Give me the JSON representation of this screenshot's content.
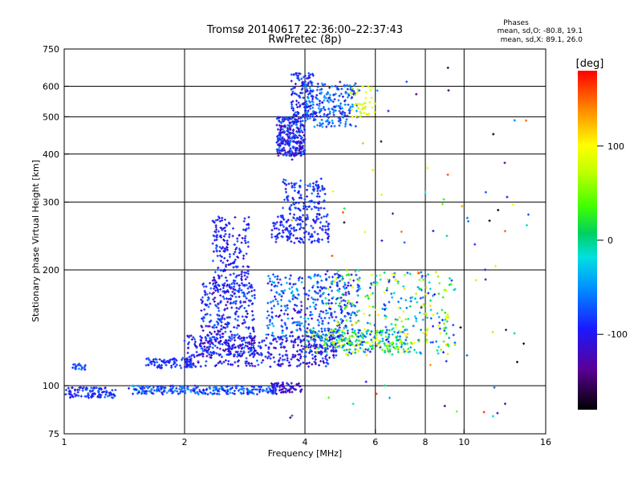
{
  "chart_data": {
    "type": "scatter",
    "title": "Tromsø 20140617 22:36:00–22:37:43",
    "subtitle": "RwPretec (8p)",
    "xlabel": "Frequency [MHz]",
    "ylabel": "Stationary phase Virtual Height [km]",
    "x_scale": "log",
    "y_scale": "log",
    "xlim": [
      1,
      16
    ],
    "ylim": [
      75,
      750
    ],
    "x_ticks": [
      1,
      2,
      4,
      6,
      8,
      10,
      16
    ],
    "x_tick_labels": [
      "1",
      "2",
      "4",
      "6",
      "8",
      "10",
      "16"
    ],
    "y_ticks": [
      75,
      100,
      200,
      300,
      400,
      500,
      600,
      750
    ],
    "y_tick_labels": [
      "75",
      "100",
      "200",
      "300",
      "400",
      "500",
      "600",
      "750"
    ],
    "x_grid": [
      2,
      4,
      6,
      8,
      10
    ],
    "y_grid": [
      100,
      200,
      300,
      400,
      500,
      600
    ],
    "grid": true,
    "phases_box": {
      "title": "Phases",
      "line_o": "mean, sd,O: -80.8, 19.1",
      "line_x": "mean, sd,X:  89.1, 26.0"
    },
    "colorbar": {
      "label": "[deg]",
      "range": [
        -180,
        180
      ],
      "ticks": [
        100,
        0,
        -100
      ],
      "tick_labels": [
        "100",
        "0",
        "-100"
      ]
    },
    "clusters": [
      {
        "fmin": 1.0,
        "fmax": 1.35,
        "hmin": 93,
        "hmax": 99,
        "n": 110,
        "pmin": -110,
        "pmax": -60
      },
      {
        "fmin": 1.45,
        "fmax": 3.4,
        "hmin": 95,
        "hmax": 100,
        "n": 240,
        "pmin": -110,
        "pmax": -40
      },
      {
        "fmin": 3.3,
        "fmax": 3.95,
        "hmin": 96,
        "hmax": 102,
        "n": 60,
        "pmin": -140,
        "pmax": -90
      },
      {
        "fmin": 1.05,
        "fmax": 1.15,
        "hmin": 110,
        "hmax": 114,
        "n": 20,
        "pmin": -90,
        "pmax": -60
      },
      {
        "fmin": 1.6,
        "fmax": 2.1,
        "hmin": 111,
        "hmax": 118,
        "n": 90,
        "pmin": -110,
        "pmax": -70
      },
      {
        "fmin": 2.0,
        "fmax": 4.8,
        "hmin": 112,
        "hmax": 135,
        "n": 420,
        "pmin": -130,
        "pmax": -70
      },
      {
        "fmin": 4.0,
        "fmax": 7.2,
        "hmin": 122,
        "hmax": 140,
        "n": 240,
        "pmin": -100,
        "pmax": 110
      },
      {
        "fmin": 2.2,
        "fmax": 3.0,
        "hmin": 120,
        "hmax": 185,
        "n": 330,
        "pmin": -130,
        "pmax": -60
      },
      {
        "fmin": 3.2,
        "fmax": 5.5,
        "hmin": 130,
        "hmax": 195,
        "n": 380,
        "pmin": -120,
        "pmax": -30
      },
      {
        "fmin": 4.5,
        "fmax": 9.5,
        "hmin": 120,
        "hmax": 200,
        "n": 320,
        "pmin": -100,
        "pmax": 120
      },
      {
        "fmin": 2.35,
        "fmax": 2.9,
        "hmin": 175,
        "hmax": 275,
        "n": 200,
        "pmin": -120,
        "pmax": -70
      },
      {
        "fmin": 3.3,
        "fmax": 4.6,
        "hmin": 235,
        "hmax": 280,
        "n": 160,
        "pmin": -110,
        "pmax": -70
      },
      {
        "fmin": 3.5,
        "fmax": 4.5,
        "hmin": 285,
        "hmax": 345,
        "n": 110,
        "pmin": -110,
        "pmax": -60
      },
      {
        "fmin": 3.4,
        "fmax": 4.0,
        "hmin": 395,
        "hmax": 500,
        "n": 280,
        "pmin": -130,
        "pmax": -60
      },
      {
        "fmin": 3.7,
        "fmax": 4.2,
        "hmin": 500,
        "hmax": 650,
        "n": 120,
        "pmin": -120,
        "pmax": -60
      },
      {
        "fmin": 4.0,
        "fmax": 5.4,
        "hmin": 470,
        "hmax": 610,
        "n": 220,
        "pmin": -110,
        "pmax": -40
      },
      {
        "fmin": 5.2,
        "fmax": 6.0,
        "hmin": 500,
        "hmax": 600,
        "n": 40,
        "pmin": 60,
        "pmax": 110
      },
      {
        "fmin": 3.5,
        "fmax": 15.0,
        "hmin": 80,
        "hmax": 680,
        "n": 90,
        "pmin": -180,
        "pmax": 170
      }
    ]
  }
}
